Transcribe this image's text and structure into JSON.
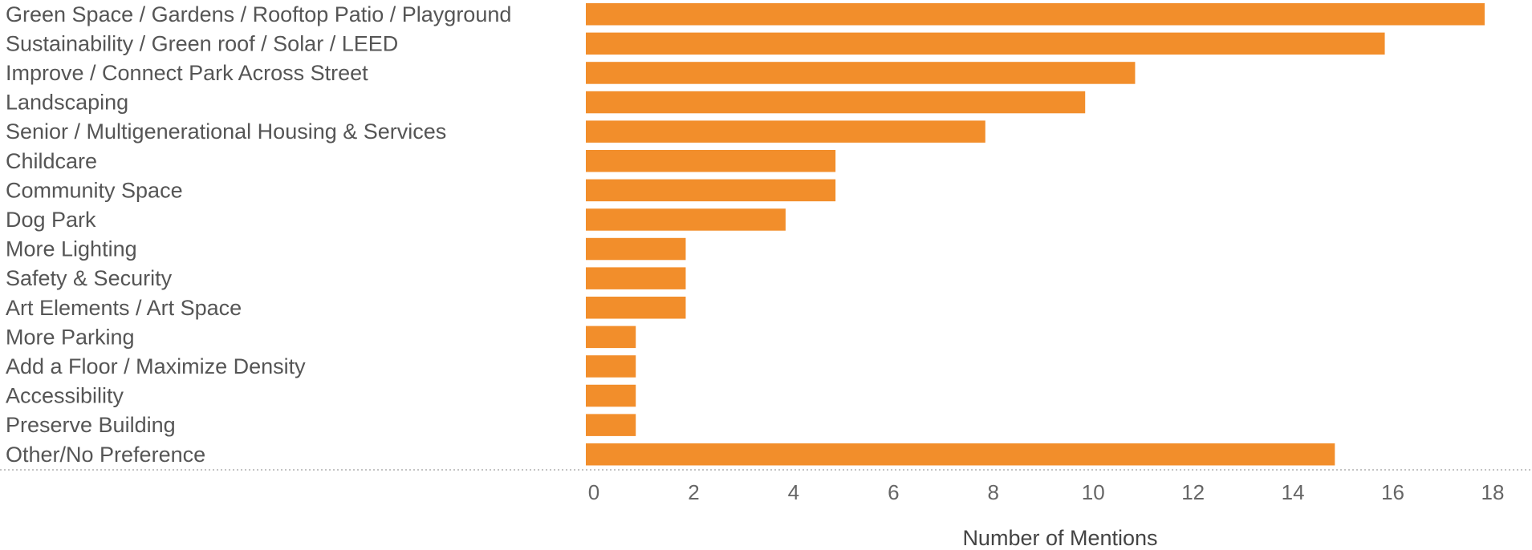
{
  "chart_data": {
    "type": "bar",
    "orientation": "horizontal",
    "categories": [
      "Green Space / Gardens / Rooftop Patio / Playground",
      "Sustainability / Green roof / Solar / LEED",
      "Improve / Connect Park Across Street",
      "Landscaping",
      "Senior / Multigenerational Housing & Services",
      "Childcare",
      "Community Space",
      "Dog Park",
      "More Lighting",
      "Safety & Security",
      "Art Elements / Art Space",
      "More Parking",
      "Add a Floor / Maximize Density",
      "Accessibility",
      "Preserve Building",
      "Other/No Preference"
    ],
    "values": [
      18,
      16,
      11,
      10,
      8,
      5,
      5,
      4,
      2,
      2,
      2,
      1,
      1,
      1,
      1,
      15
    ],
    "xlabel": "Number of Mentions",
    "xticks": [
      "0",
      "2",
      "4",
      "6",
      "8",
      "10",
      "12",
      "14",
      "16",
      "18"
    ],
    "xlim": [
      0,
      18
    ],
    "grid": false,
    "bar_color": "#F28E2B"
  }
}
